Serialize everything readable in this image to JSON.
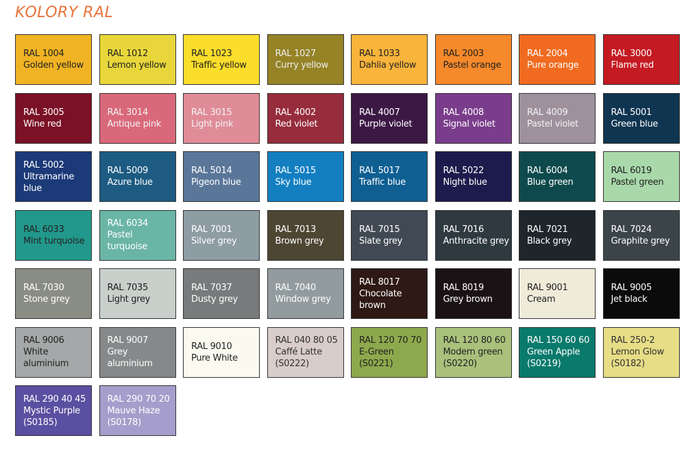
{
  "title": "KOLORY RAL",
  "swatches": [
    {
      "code": "RAL 1004",
      "name": "Golden yellow",
      "color": "#f0b323",
      "text": "#222"
    },
    {
      "code": "RAL 1012",
      "name": "Lemon yellow",
      "color": "#e8d63a",
      "text": "#222"
    },
    {
      "code": "RAL 1023",
      "name": "Traffic yellow",
      "color": "#fbdd2b",
      "text": "#222"
    },
    {
      "code": "RAL 1027",
      "name": "Curry yellow",
      "color": "#958326",
      "text": "#eee"
    },
    {
      "code": "RAL 1033",
      "name": "Dahlia yellow",
      "color": "#f8b43b",
      "text": "#222"
    },
    {
      "code": "RAL 2003",
      "name": "Pastel orange",
      "color": "#f6892a",
      "text": "#222"
    },
    {
      "code": "RAL 2004",
      "name": "Pure orange",
      "color": "#f06b20",
      "text": "#fff"
    },
    {
      "code": "RAL 3000",
      "name": "Flame red",
      "color": "#c41a22",
      "text": "#fff"
    },
    {
      "code": "RAL 3005",
      "name": "Wine red",
      "color": "#7b1126",
      "text": "#fff"
    },
    {
      "code": "RAL 3014",
      "name": "Antique pink",
      "color": "#d9697a",
      "text": "#f3f3f3"
    },
    {
      "code": "RAL 3015",
      "name": "Light pink",
      "color": "#df8c98",
      "text": "#f3f3f3"
    },
    {
      "code": "RAL 4002",
      "name": "Red violet",
      "color": "#962c3c",
      "text": "#fff"
    },
    {
      "code": "RAL 4007",
      "name": "Purple violet",
      "color": "#3c1845",
      "text": "#fff"
    },
    {
      "code": "RAL 4008",
      "name": "Signal violet",
      "color": "#7a3d8b",
      "text": "#fff"
    },
    {
      "code": "RAL 4009",
      "name": "Pastel violet",
      "color": "#9e919c",
      "text": "#f3f3f3"
    },
    {
      "code": "RAL 5001",
      "name": "Green blue",
      "color": "#0f3550",
      "text": "#fff"
    },
    {
      "code": "RAL 5002",
      "name": "Ultramarine\nblue",
      "color": "#1c3a78",
      "text": "#fff"
    },
    {
      "code": "RAL 5009",
      "name": "Azure blue",
      "color": "#1d5b82",
      "text": "#fff"
    },
    {
      "code": "RAL 5014",
      "name": "Pigeon blue",
      "color": "#5a7699",
      "text": "#fff"
    },
    {
      "code": "RAL 5015",
      "name": "Sky blue",
      "color": "#137fc1",
      "text": "#fff"
    },
    {
      "code": "RAL 5017",
      "name": "Traffic blue",
      "color": "#0f5f92",
      "text": "#fff"
    },
    {
      "code": "RAL 5022",
      "name": "Night blue",
      "color": "#1d1b4c",
      "text": "#fff"
    },
    {
      "code": "RAL 6004",
      "name": "Blue green",
      "color": "#0e4a4d",
      "text": "#fff"
    },
    {
      "code": "RAL 6019",
      "name": "Pastel green",
      "color": "#a9d9ab",
      "text": "#222"
    },
    {
      "code": "RAL 6033",
      "name": "Mint turquoise",
      "color": "#22988c",
      "text": "#222"
    },
    {
      "code": "RAL 6034",
      "name": "Pastel turquoise",
      "color": "#6ab5a6",
      "text": "#fff"
    },
    {
      "code": "RAL 7001",
      "name": "Silver grey",
      "color": "#8e9ca4",
      "text": "#fff"
    },
    {
      "code": "RAL 7013",
      "name": "Brown grey",
      "color": "#4d4633",
      "text": "#fff"
    },
    {
      "code": "RAL 7015",
      "name": "Slate grey",
      "color": "#414a54",
      "text": "#fff"
    },
    {
      "code": "RAL 7016",
      "name": "Anthracite grey",
      "color": "#2f3a40",
      "text": "#fff"
    },
    {
      "code": "RAL 7021",
      "name": "Black grey",
      "color": "#1e262b",
      "text": "#fff"
    },
    {
      "code": "RAL 7024",
      "name": "Graphite grey",
      "color": "#3b4449",
      "text": "#fff"
    },
    {
      "code": "RAL 7030",
      "name": "Stone grey",
      "color": "#8a8d83",
      "text": "#fff"
    },
    {
      "code": "RAL 7035",
      "name": "Light grey",
      "color": "#c9cfcb",
      "text": "#222"
    },
    {
      "code": "RAL 7037",
      "name": "Dusty grey",
      "color": "#777b7c",
      "text": "#fff"
    },
    {
      "code": "RAL 7040",
      "name": "Window grey",
      "color": "#929c9f",
      "text": "#fff"
    },
    {
      "code": "RAL 8017",
      "name": "Chocolate\nbrown",
      "color": "#2e1914",
      "text": "#fff"
    },
    {
      "code": "RAL 8019",
      "name": "Grey brown",
      "color": "#1a1214",
      "text": "#fff"
    },
    {
      "code": "RAL 9001",
      "name": "Cream",
      "color": "#efebd9",
      "text": "#222"
    },
    {
      "code": "RAL 9005",
      "name": "Jet black",
      "color": "#0b0b0c",
      "text": "#fff"
    },
    {
      "code": "RAL 9006",
      "name": "White\naluminium",
      "color": "#a5a7a8",
      "text": "#222"
    },
    {
      "code": "RAL 9007",
      "name": "Grey aluminium",
      "color": "#86888a",
      "text": "#fff"
    },
    {
      "code": "RAL 9010",
      "name": "Pure White",
      "color": "#fbfaf0",
      "text": "#222"
    },
    {
      "code": "RAL 040 80 05",
      "name": "Caffé Latte\n(S0222)",
      "color": "#d8cdc8",
      "text": "#333"
    },
    {
      "code": "RAL 120 70 70",
      "name": "E-Green\n(S0221)",
      "color": "#8da94d",
      "text": "#222"
    },
    {
      "code": "RAL 120 80 60",
      "name": "Modern green\n(S0220)",
      "color": "#a9c17b",
      "text": "#222"
    },
    {
      "code": "RAL 150 60 60",
      "name": "Green Apple\n(S0219)",
      "color": "#0a7a6c",
      "text": "#fff"
    },
    {
      "code": "RAL 250-2",
      "name": "Lemon Glow\n(S0182)",
      "color": "#e6dd86",
      "text": "#333"
    },
    {
      "code": "RAL 290 40 45",
      "name": "Mystic Purple\n(S0185)",
      "color": "#5a4fa0",
      "text": "#fff"
    },
    {
      "code": "RAL 290 70 20",
      "name": "Mauve Haze\n(S0178)",
      "color": "#a59dcb",
      "text": "#fff"
    }
  ]
}
